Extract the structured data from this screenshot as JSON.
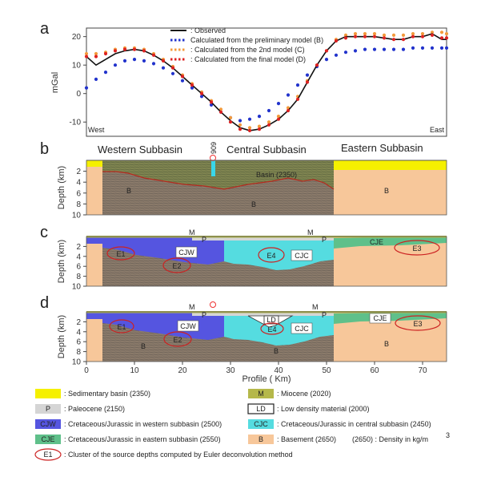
{
  "panels": {
    "a": {
      "letter": "a",
      "ylabel": "mGal",
      "yticks": [
        "20",
        "10",
        "0",
        "-10"
      ],
      "left_label": "West",
      "right_label": "East",
      "legend": [
        {
          "label": ": Observed",
          "color": "#111111",
          "style": "solid"
        },
        {
          "label": "Calculated from the preliminary model (B)",
          "color": "#2233cc",
          "style": "dotted"
        },
        {
          "label": ": Calculated from the 2nd model (C)",
          "color": "#f39a3c",
          "style": "dotted"
        },
        {
          "label": ": Calculated from the final model (D)",
          "color": "#dd2222",
          "style": "dotted"
        }
      ]
    },
    "b": {
      "letter": "b",
      "ylabel": "Depth (km)",
      "yticks": [
        "2",
        "4",
        "6",
        "8",
        "10"
      ],
      "titles": [
        "Western Subbasin",
        "Central Subbasin",
        "Eastern Subbasin"
      ],
      "well": "909",
      "labels": {
        "basin": "Basin (2350)",
        "b1": "B",
        "b2": "B",
        "b3": "B"
      }
    },
    "c": {
      "letter": "c",
      "ylabel": "Depth (km)",
      "yticks": [
        "2",
        "4",
        "6",
        "8",
        "10"
      ],
      "labels": {
        "m1": "M",
        "m2": "M",
        "p1": "P",
        "p2": "P",
        "cjw": "CJW",
        "cjc": "CJC",
        "cje": "CJE",
        "e1": "E1",
        "e2": "E2",
        "e3": "E3",
        "e4": "E4"
      }
    },
    "d": {
      "letter": "d",
      "ylabel": "Depth (km)",
      "yticks": [
        "2",
        "4",
        "6",
        "8",
        "10"
      ],
      "xticks": [
        "0",
        "10",
        "20",
        "30",
        "40",
        "50",
        "60",
        "70"
      ],
      "xlabel": "Profile ( Km)",
      "labels": {
        "m1": "M",
        "m2": "M",
        "p1": "P",
        "p2": "P",
        "ld": "LD",
        "cjw": "CJW",
        "cjc": "CJC",
        "cje": "CJE",
        "e1": "E1",
        "e2": "E2",
        "e3": "E3",
        "e4": "E4",
        "b1": "B",
        "b2": "B",
        "b3": "B"
      }
    }
  },
  "chart_data": {
    "type": "line",
    "title": "",
    "xlabel": "",
    "ylabel": "mGal",
    "x": [
      0,
      2,
      4,
      6,
      8,
      10,
      12,
      14,
      16,
      18,
      20,
      22,
      24,
      26,
      28,
      30,
      32,
      34,
      36,
      38,
      40,
      42,
      44,
      46,
      48,
      50,
      52,
      54,
      56,
      58,
      60,
      62,
      64,
      66,
      68,
      70,
      72,
      74,
      75
    ],
    "xlim": [
      0,
      75
    ],
    "ylim": [
      -15,
      23
    ],
    "series": [
      {
        "name": "Observed",
        "color": "#111111",
        "values": [
          13,
          10,
          12,
          14,
          15,
          15.5,
          15,
          13.5,
          11.5,
          9,
          6,
          3,
          0,
          -3,
          -6.5,
          -9.5,
          -12,
          -13,
          -12.5,
          -11,
          -9,
          -6,
          -2,
          4,
          10,
          15,
          18.5,
          20,
          20,
          20,
          20,
          19.5,
          19,
          19,
          20,
          20,
          21,
          19,
          19
        ]
      },
      {
        "name": "Calculated from the preliminary model (B)",
        "color": "#2233cc",
        "values": [
          2,
          5,
          7.5,
          10,
          11.5,
          12,
          11.5,
          10.5,
          9,
          7,
          4.5,
          2,
          -1,
          -4,
          -6.5,
          -8.5,
          -9.5,
          -9,
          -8,
          -6,
          -3.5,
          -0.5,
          3,
          6.5,
          9.5,
          12,
          13.5,
          14.5,
          15,
          15.5,
          15.5,
          15.5,
          15.5,
          15.5,
          16,
          16,
          16,
          16,
          16
        ]
      },
      {
        "name": "Calculated from the 2nd model (C)",
        "color": "#f39a3c",
        "values": [
          14,
          14,
          14.5,
          15.5,
          16,
          16,
          15.5,
          14,
          12,
          9.5,
          6.5,
          3.5,
          0.5,
          -2.5,
          -5.5,
          -8.5,
          -11,
          -12,
          -11.5,
          -10,
          -8,
          -5,
          -1,
          4.5,
          10,
          15,
          19,
          20.5,
          21,
          21,
          21,
          20.5,
          20.5,
          20.5,
          21,
          21,
          21.5,
          21.5,
          21
        ]
      },
      {
        "name": "Calculated from the final model (D)",
        "color": "#dd2222",
        "values": [
          13,
          13,
          14,
          15,
          15.5,
          15.5,
          15,
          13.5,
          11.5,
          9,
          6,
          3,
          0,
          -3,
          -6.5,
          -10,
          -12.5,
          -13,
          -12.5,
          -11,
          -9,
          -6,
          -2,
          4,
          10,
          15,
          18.5,
          19.5,
          20,
          20,
          20,
          19.5,
          19,
          19,
          20,
          20,
          20.5,
          19.5,
          19.5
        ]
      }
    ],
    "legend": "top-center",
    "grid": false
  },
  "legend": {
    "items": [
      {
        "key": "",
        "text": ": Sedimentary basin (2350)",
        "color": "#f5f000"
      },
      {
        "key": "M",
        "text": ": Miocene (2020)",
        "color": "#b5b84a"
      },
      {
        "key": "P",
        "text": ": Paleocene (2150)",
        "color": "#d5d5d5"
      },
      {
        "key": "LD",
        "text": ": Low density material (2000)",
        "color": "#ffffff"
      },
      {
        "key": "CJW",
        "text": ": Cretaceous/Jurassic in western subbasin (2500)",
        "color": "#5555e0"
      },
      {
        "key": "CJC",
        "text": ": Cretaceous/Jurassic in central subbasin (2450)",
        "color": "#55dce0"
      },
      {
        "key": "CJE",
        "text": ": Cretaceous/Jurassic in eastern subbasin (2550)",
        "color": "#5fc08a"
      },
      {
        "key": "B",
        "text": ": Basement (2650)",
        "color": "#f7c79a"
      }
    ],
    "density_note": "(2650) : Density in kg/m",
    "density_sup": "3",
    "euler_key": "E1",
    "euler_text": ": Cluster of the source depths computed by Euler deconvolution method"
  }
}
